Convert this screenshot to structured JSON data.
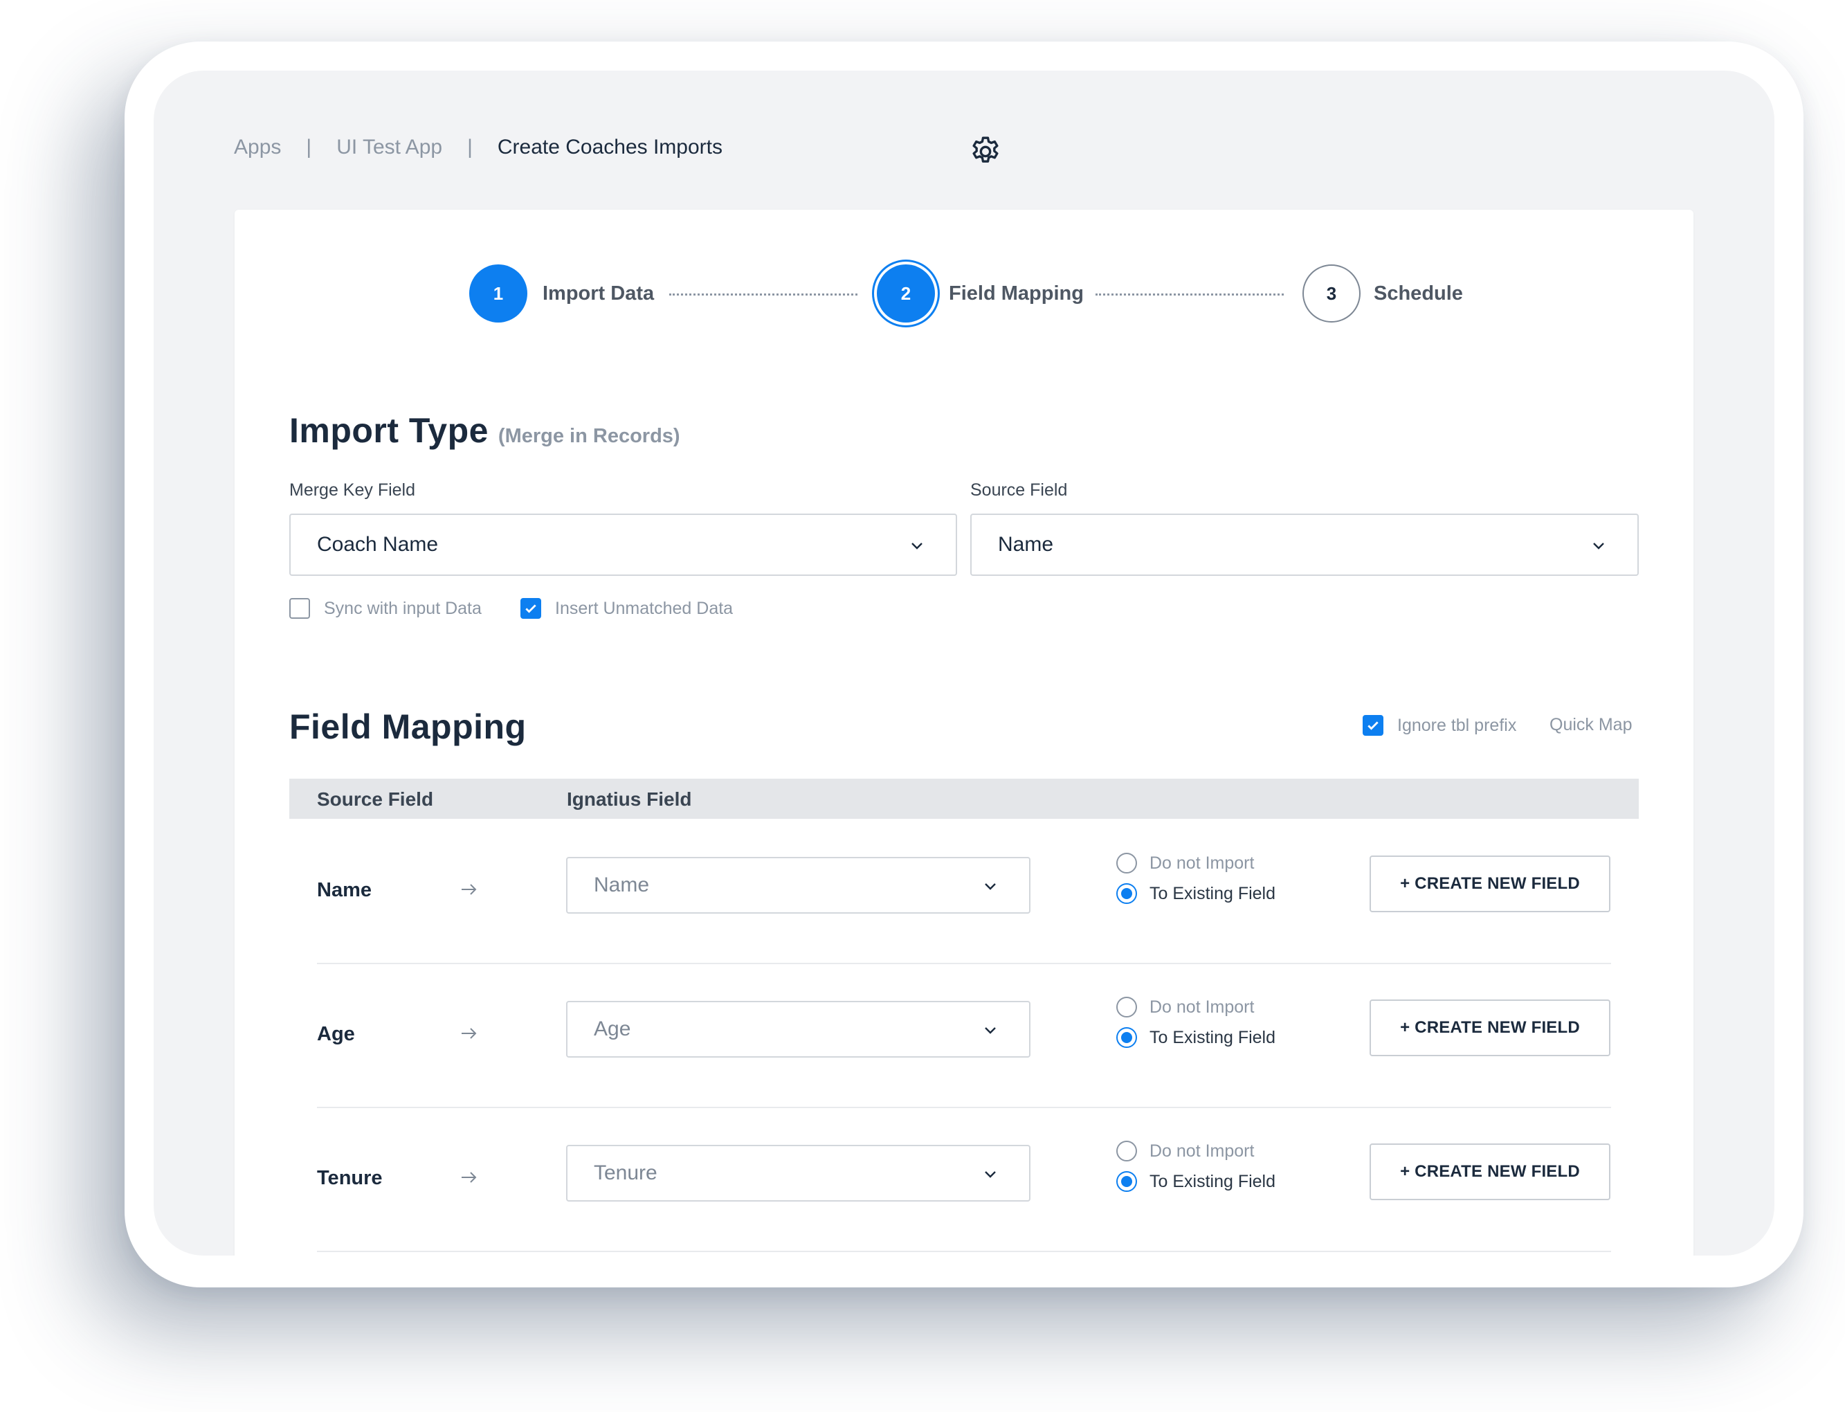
{
  "breadcrumb": {
    "items": [
      "Apps",
      "UI Test App",
      "Create Coaches Imports"
    ],
    "separator": "|"
  },
  "icons": {
    "settings": "gear-icon",
    "dropdown": "chevron-down-icon",
    "map_arrow": "arrow-right-icon",
    "check": "check-icon"
  },
  "colors": {
    "accent": "#0d7ff0",
    "screen_bg": "#f2f3f5",
    "card_bg": "#ffffff",
    "table_header_bg": "#e4e6e9"
  },
  "stepper": {
    "steps": [
      {
        "number": "1",
        "label": "Import Data",
        "state": "complete"
      },
      {
        "number": "2",
        "label": "Field Mapping",
        "state": "active"
      },
      {
        "number": "3",
        "label": "Schedule",
        "state": "pending"
      }
    ]
  },
  "import_type": {
    "title": "Import Type",
    "subtitle": "(Merge in Records)",
    "merge_key_label": "Merge Key Field",
    "merge_key_value": "Coach Name",
    "source_field_label": "Source Field",
    "source_field_value": "Name",
    "sync_label": "Sync with input Data",
    "sync_checked": false,
    "insert_label": "Insert Unmatched Data",
    "insert_checked": true
  },
  "field_mapping": {
    "title": "Field Mapping",
    "ignore_prefix_label": "Ignore tbl prefix",
    "ignore_prefix_checked": true,
    "quick_map_label": "Quick Map",
    "columns": [
      "Source Field",
      "Ignatius Field"
    ],
    "rows": [
      {
        "source": "Name",
        "target": "Name",
        "option_no_import": "Do not Import",
        "option_existing": "To Existing Field",
        "selected": "existing",
        "button": "+ CREATE NEW FIELD"
      },
      {
        "source": "Age",
        "target": "Age",
        "option_no_import": "Do not Import",
        "option_existing": "To Existing Field",
        "selected": "existing",
        "button": "+ CREATE NEW FIELD"
      },
      {
        "source": "Tenure",
        "target": "Tenure",
        "option_no_import": "Do not Import",
        "option_existing": "To Existing Field",
        "selected": "existing",
        "button": "+ CREATE NEW FIELD"
      }
    ]
  }
}
